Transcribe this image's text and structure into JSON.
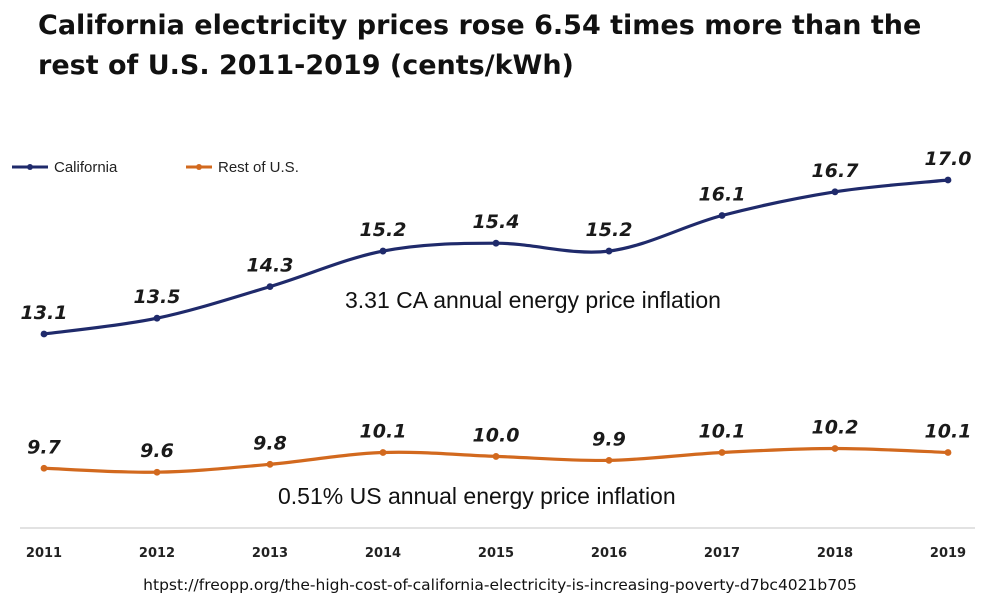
{
  "title": "California electricity prices rose 6.54 times more than the rest of U.S. 2011-2019 (cents/kWh)",
  "source": "htpst://freopp.org/the-high-cost-of-california-electricity-is-increasing-poverty-d7bc4021b705",
  "chart_data": {
    "type": "line",
    "categories": [
      "2011",
      "2012",
      "2013",
      "2014",
      "2015",
      "2016",
      "2017",
      "2018",
      "2019"
    ],
    "series": [
      {
        "name": "California",
        "color": "#1f2a6b",
        "values": [
          13.1,
          13.5,
          14.3,
          15.2,
          15.4,
          15.2,
          16.1,
          16.7,
          17.0
        ],
        "labels": [
          "13.1",
          "13.5",
          "14.3",
          "15.2",
          "15.4",
          "15.2",
          "16.1",
          "16.7",
          "17.0"
        ]
      },
      {
        "name": "Rest of U.S.",
        "color": "#d2691e",
        "values": [
          9.7,
          9.6,
          9.8,
          10.1,
          10.0,
          9.9,
          10.1,
          10.2,
          10.1
        ],
        "labels": [
          "9.7",
          "9.6",
          "9.8",
          "10.1",
          "10.0",
          "9.9",
          "10.1",
          "10.2",
          "10.1"
        ]
      }
    ],
    "annotations": [
      "3.31 CA annual energy price inflation",
      "0.51% US annual energy price inflation"
    ],
    "legend_position": "top-left",
    "grid": false
  }
}
